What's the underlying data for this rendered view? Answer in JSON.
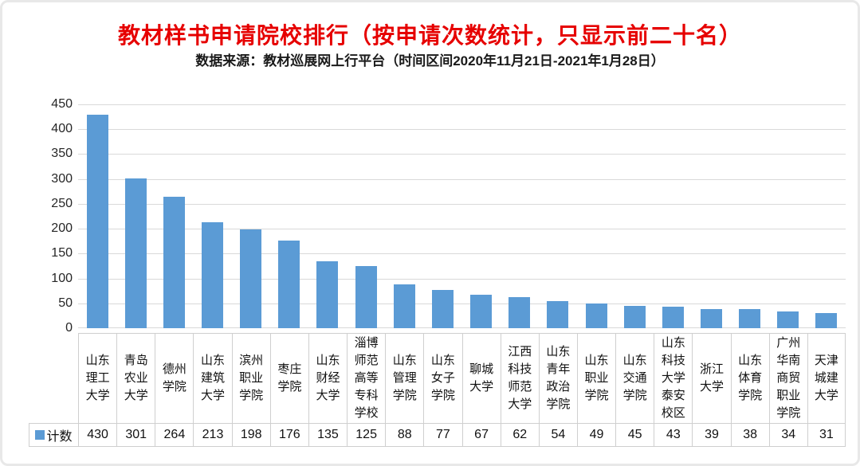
{
  "title": "教材样书申请院校排行（按申请次数统计，只显示前二十名）",
  "subtitle": "数据来源：教材巡展网上行平台（时间区间2020年11月21日-2021年1月28日）",
  "legend": {
    "label": "计数"
  },
  "colors": {
    "title_text": "#e60000",
    "subtitle_text": "#1a1a1a",
    "bar": "#5b9bd5",
    "gridline": "#d9d9d9",
    "table_border": "#cfcfcf",
    "axis_text": "#262626",
    "card_border": "#e8e8e8"
  },
  "chart_data": {
    "type": "bar",
    "title": "教材样书申请院校排行（按申请次数统计，只显示前二十名）",
    "subtitle": "数据来源：教材巡展网上行平台（时间区间2020年11月21日-2021年1月28日）",
    "categories": [
      "山东理工大学",
      "青岛农业大学",
      "德州学院",
      "山东建筑大学",
      "滨州职业学院",
      "枣庄学院",
      "山东财经大学",
      "淄博师范高等专科学校",
      "山东管理学院",
      "山东女子学院",
      "聊城大学",
      "江西科技师范大学",
      "山东青年政治学院",
      "山东职业学院",
      "山东交通学院",
      "山东科技大学泰安校区",
      "浙江大学",
      "山东体育学院",
      "广州华南商贸职业学院",
      "天津城建大学"
    ],
    "series": [
      {
        "name": "计数",
        "values": [
          430,
          301,
          264,
          213,
          198,
          176,
          135,
          125,
          88,
          77,
          67,
          62,
          54,
          49,
          45,
          43,
          39,
          38,
          34,
          31
        ]
      }
    ],
    "xlabel": "",
    "ylabel": "",
    "ylim": [
      0,
      450
    ],
    "yticks": [
      0,
      50,
      100,
      150,
      200,
      250,
      300,
      350,
      400,
      450
    ],
    "grid": true,
    "legend_position": "bottom-left",
    "data_table": true
  }
}
